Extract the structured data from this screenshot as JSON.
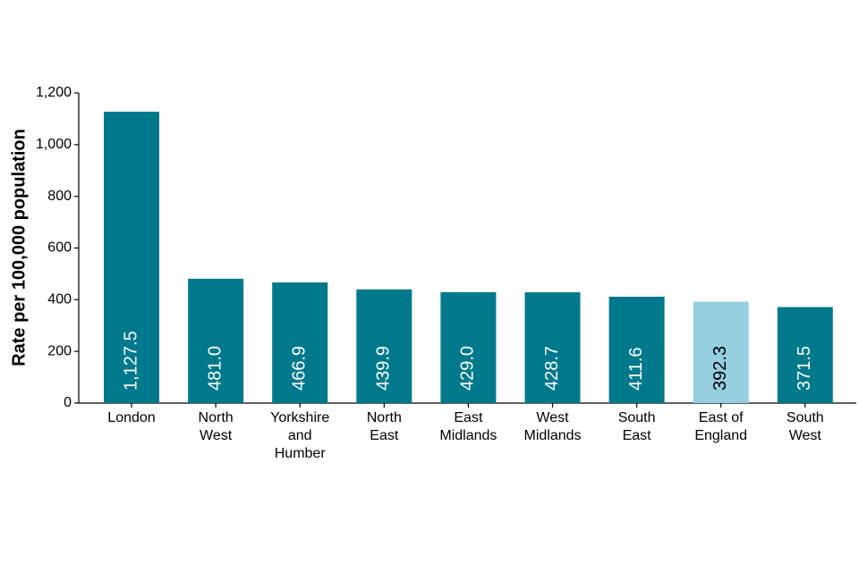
{
  "chart_data": {
    "type": "bar",
    "y_label": "Rate per 100,000 population",
    "categories": [
      "London",
      "North\nWest",
      "Yorkshire\nand\nHumber",
      "North\nEast",
      "East\nMidlands",
      "West\nMidlands",
      "South\nEast",
      "East of\nEngland",
      "South\nWest"
    ],
    "values": [
      1127.5,
      481.0,
      466.9,
      439.9,
      429.0,
      428.7,
      411.6,
      392.3,
      371.5
    ],
    "value_labels": [
      "1,127.5",
      "481.0",
      "466.9",
      "439.9",
      "429.0",
      "428.7",
      "411.6",
      "392.3",
      "371.5"
    ],
    "colors": [
      "#00798c",
      "#00798c",
      "#00798c",
      "#00798c",
      "#00798c",
      "#00798c",
      "#00798c",
      "#95cfe0",
      "#00798c"
    ],
    "ylim": [
      0,
      1200
    ],
    "yticks": [
      0,
      200,
      400,
      600,
      800,
      {
        "value": 1000,
        "label": "1,000"
      },
      {
        "value": 1200,
        "label": "1,200"
      }
    ],
    "grid": false
  }
}
